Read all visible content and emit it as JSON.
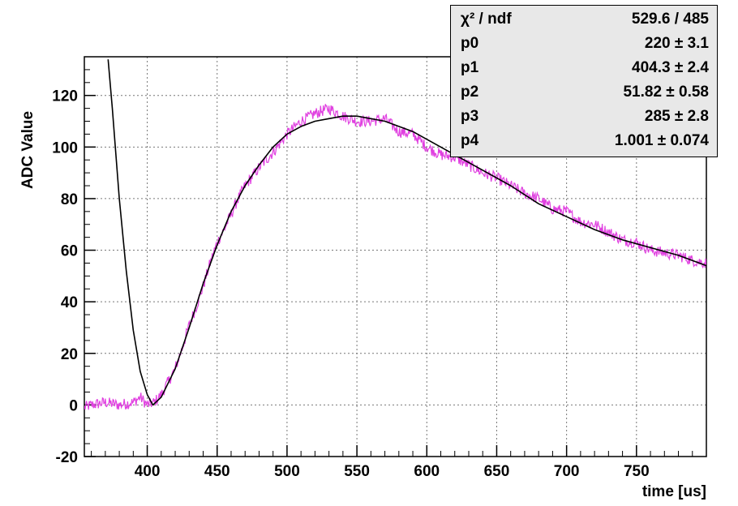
{
  "chart_data": {
    "type": "line",
    "title": "",
    "xlabel": "time [us]",
    "ylabel": "ADC Value",
    "xlim": [
      355,
      800
    ],
    "ylim": [
      -20,
      135
    ],
    "x_ticks": [
      400,
      450,
      500,
      550,
      600,
      650,
      700,
      750
    ],
    "y_ticks": [
      -20,
      0,
      20,
      40,
      60,
      80,
      100,
      120
    ],
    "grid": true,
    "colors": {
      "data": "#e040e0",
      "fit": "#000000",
      "stats_bg": "#e8e8e8"
    },
    "series": [
      {
        "kind": "data",
        "x": [
          355,
          360,
          370,
          380,
          390,
          395,
          400,
          405,
          410,
          415,
          420,
          425,
          430,
          435,
          440,
          445,
          450,
          455,
          460,
          465,
          470,
          480,
          490,
          500,
          510,
          520,
          530,
          540,
          550,
          560,
          570,
          580,
          590,
          600,
          610,
          620,
          630,
          640,
          650,
          660,
          670,
          680,
          690,
          700,
          710,
          720,
          730,
          740,
          750,
          760,
          770,
          780,
          790,
          800
        ],
        "y": [
          -1,
          0,
          1,
          0,
          1,
          3,
          0,
          1,
          4,
          9,
          14,
          22,
          31,
          38,
          46,
          55,
          63,
          68,
          74,
          80,
          85,
          92,
          98,
          105,
          110,
          113,
          115,
          112,
          110,
          110,
          111,
          106,
          105,
          100,
          97,
          96,
          93,
          90,
          88,
          85,
          82,
          80,
          76,
          75,
          71,
          70,
          67,
          64,
          63,
          60,
          59,
          58,
          56,
          55
        ]
      },
      {
        "kind": "fit",
        "x": [
          372,
          375,
          380,
          385,
          390,
          395,
          400,
          404,
          410,
          420,
          430,
          440,
          450,
          460,
          470,
          480,
          490,
          500,
          510,
          520,
          530,
          540,
          550,
          560,
          570,
          580,
          590,
          600,
          620,
          640,
          660,
          680,
          700,
          720,
          740,
          760,
          780,
          800
        ],
        "y": [
          134,
          115,
          80,
          52,
          29,
          13,
          4,
          0,
          3,
          14,
          30,
          47,
          62,
          75,
          85,
          93,
          100,
          105,
          108,
          110,
          111,
          112,
          112,
          111,
          110,
          108,
          106,
          103,
          97,
          91,
          85,
          78,
          73,
          68,
          64,
          61,
          58,
          54
        ]
      }
    ],
    "stats": {
      "chi2": {
        "label": "χ² / ndf",
        "value": "529.6 / 485"
      },
      "params": [
        {
          "name": "p0",
          "value": "220 ± 3.1"
        },
        {
          "name": "p1",
          "value": "404.3 ± 2.4"
        },
        {
          "name": "p2",
          "value": "51.82 ± 0.58"
        },
        {
          "name": "p3",
          "value": "285 ± 2.8"
        },
        {
          "name": "p4",
          "value": "1.001 ± 0.074"
        }
      ]
    }
  }
}
